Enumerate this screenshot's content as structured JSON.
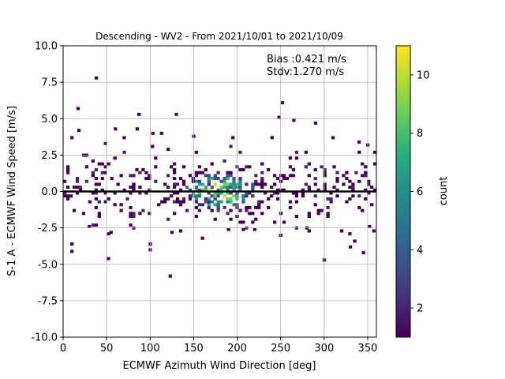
{
  "chart_data": {
    "type": "heatmap",
    "title": "Descending - WV2 - From 2021/10/01 to 2021/10/09",
    "xlabel": "ECMWF Azimuth Wind Direction [deg]",
    "ylabel": "S-1 A - ECMWF Wind Speed [m/s]",
    "xlim": [
      0,
      360
    ],
    "ylim": [
      -10,
      10
    ],
    "xticks": [
      0,
      50,
      100,
      150,
      200,
      250,
      300,
      350
    ],
    "yticks": [
      -10.0,
      -7.5,
      -5.0,
      -2.5,
      0.0,
      2.5,
      5.0,
      7.5,
      10.0
    ],
    "grid": true,
    "zero_line": 0,
    "annotations": [
      "Bias :0.421 m/s",
      "Stdv:1.270 m/s"
    ],
    "colorbar": {
      "label": "count",
      "colormap": "viridis",
      "range": [
        1,
        11
      ],
      "ticks": [
        2,
        4,
        6,
        8,
        10
      ]
    },
    "bins": {
      "x_width_deg": 3.6,
      "y_width_ms": 0.2,
      "outliers": [
        [
          38,
          7.8
        ],
        [
          17,
          5.7
        ],
        [
          130,
          5.3
        ],
        [
          248,
          5.1
        ],
        [
          252,
          6.1
        ],
        [
          10,
          3.7
        ],
        [
          18,
          4.2
        ],
        [
          52,
          -4.6
        ],
        [
          123,
          -5.8
        ],
        [
          10,
          -3.6
        ],
        [
          10,
          -4.1
        ],
        [
          100,
          -4.0
        ],
        [
          100,
          -3.6
        ],
        [
          300,
          -4.7
        ],
        [
          330,
          -3.8
        ],
        [
          345,
          -4.2
        ],
        [
          335,
          -3.4
        ],
        [
          250,
          -3.0
        ],
        [
          220,
          -2.6
        ],
        [
          207,
          -2.6
        ],
        [
          265,
          4.9
        ],
        [
          290,
          4.7
        ],
        [
          87,
          5.3
        ],
        [
          60,
          4.3
        ],
        [
          70,
          3.7
        ],
        [
          85,
          4.3
        ],
        [
          103,
          4.0
        ],
        [
          113,
          4.0
        ],
        [
          150,
          3.8
        ],
        [
          195,
          3.7
        ],
        [
          240,
          3.7
        ],
        [
          310,
          3.7
        ],
        [
          350,
          3.2
        ],
        [
          358,
          2.7
        ],
        [
          340,
          3.4
        ],
        [
          357,
          -2.7
        ],
        [
          352,
          -2.4
        ],
        [
          30,
          -2.4
        ],
        [
          55,
          -2.8
        ],
        [
          125,
          -2.8
        ],
        [
          135,
          -2.7
        ],
        [
          160,
          -3.2
        ],
        [
          190,
          -2.6
        ],
        [
          280,
          -2.5
        ],
        [
          320,
          -2.7
        ]
      ]
    }
  }
}
